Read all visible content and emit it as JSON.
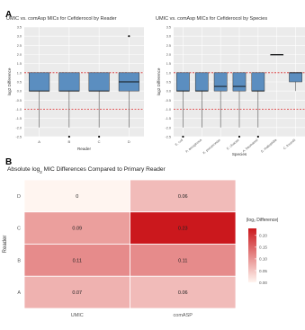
{
  "panels": {
    "a_letter": "A",
    "b_letter": "B"
  },
  "colors": {
    "box_fill": "#5b8ec0",
    "box_stroke": "#333333",
    "ref_red": "#d62728",
    "panel_bg": "#ebebeb",
    "grid": "#ffffff",
    "heat_low": "#fff5f0",
    "heat_high": "#cb181d"
  },
  "chart_data": [
    {
      "type": "box",
      "title": "UMIC vs. comAsp MICs for Cefiderocol by Reader",
      "xlabel": "Reader",
      "ylabel": "log2 Difference",
      "ylim": [
        -2.5,
        3.5
      ],
      "y_ticks": [
        "3.5",
        "3.0",
        "2.5",
        "2.0",
        "1.5",
        "1.0",
        "0.5",
        "0.0",
        "-0.5",
        "-1.0",
        "-1.5",
        "-2.0",
        "-2.5"
      ],
      "reference_lines": [
        1,
        -1
      ],
      "grid": true,
      "categories": [
        "A",
        "B",
        "C",
        "D"
      ],
      "boxes": [
        {
          "q1": 0,
          "median": 0,
          "q3": 1,
          "whisker_low": -2,
          "whisker_high": 1,
          "outliers": []
        },
        {
          "q1": 0,
          "median": 0,
          "q3": 1,
          "whisker_low": -2,
          "whisker_high": 1,
          "outliers": [
            -2.5
          ]
        },
        {
          "q1": 0,
          "median": 0,
          "q3": 1,
          "whisker_low": -2,
          "whisker_high": 1,
          "outliers": [
            -2.5
          ]
        },
        {
          "q1": 0,
          "median": 0.5,
          "q3": 1,
          "whisker_low": -2,
          "whisker_high": 1,
          "outliers": [
            3
          ]
        }
      ]
    },
    {
      "type": "box",
      "title": "UMIC vs. comAsp MICs for Cefiderocol by Species",
      "xlabel": "Species",
      "ylabel": "log2 Difference",
      "ylim": [
        -2.5,
        3.5
      ],
      "y_ticks": [
        "3.5",
        "3.0",
        "2.5",
        "2.0",
        "1.5",
        "1.0",
        "0.5",
        "0.0",
        "-0.5",
        "-1.0",
        "-1.5",
        "-2.0",
        "-2.5"
      ],
      "reference_lines": [
        1,
        -1
      ],
      "grid": true,
      "categories": [
        "E. coli",
        "P. aeruginosa",
        "K. pneumoniae",
        "E. cloacae",
        "A. baumannii",
        "S. maltophilia",
        "C. freundii"
      ],
      "boxes": [
        {
          "q1": 0,
          "median": 0,
          "q3": 1,
          "whisker_low": -2,
          "whisker_high": 1,
          "outliers": [
            -2.5
          ]
        },
        {
          "q1": 0,
          "median": 0,
          "q3": 1,
          "whisker_low": -2,
          "whisker_high": 1,
          "outliers": []
        },
        {
          "q1": 0,
          "median": 0.25,
          "q3": 1,
          "whisker_low": -2,
          "whisker_high": 1,
          "outliers": []
        },
        {
          "q1": 0,
          "median": 0.25,
          "q3": 1,
          "whisker_low": -2,
          "whisker_high": 1,
          "outliers": [
            -2.5
          ]
        },
        {
          "q1": 0,
          "median": 0,
          "q3": 1,
          "whisker_low": -2,
          "whisker_high": 1,
          "outliers": [
            -2.5
          ]
        },
        {
          "q1": 2,
          "median": 2,
          "q3": 2,
          "whisker_low": 2,
          "whisker_high": 2,
          "outliers": []
        },
        {
          "q1": 0.5,
          "median": 1,
          "q3": 1,
          "whisker_low": 0,
          "whisker_high": 1,
          "outliers": []
        }
      ]
    },
    {
      "type": "heatmap",
      "title_pre": "Absolute log",
      "title_sub": "2",
      "title_post": " MIC Differences Compared to Primary Reader",
      "xlabel": "",
      "ylabel": "Reader",
      "x": [
        "UMIC",
        "comASP"
      ],
      "y": [
        "D",
        "C",
        "B",
        "A"
      ],
      "values": [
        [
          0,
          0.06
        ],
        [
          0.09,
          0.23
        ],
        [
          0.11,
          0.11
        ],
        [
          0.07,
          0.06
        ]
      ],
      "value_labels": [
        [
          "0",
          "0.06"
        ],
        [
          "0.09",
          "0.23"
        ],
        [
          "0.11",
          "0.11"
        ],
        [
          "0.07",
          "0.06"
        ]
      ],
      "legend_title": "|log₂ Difference|",
      "legend_ticks": [
        "0.20",
        "0.15",
        "0.10",
        "0.05",
        "0.00"
      ],
      "legend_tick_values": [
        0.2,
        0.15,
        0.1,
        0.05,
        0.0
      ],
      "vmin": 0,
      "vmax": 0.23,
      "legend_position": "right"
    }
  ]
}
